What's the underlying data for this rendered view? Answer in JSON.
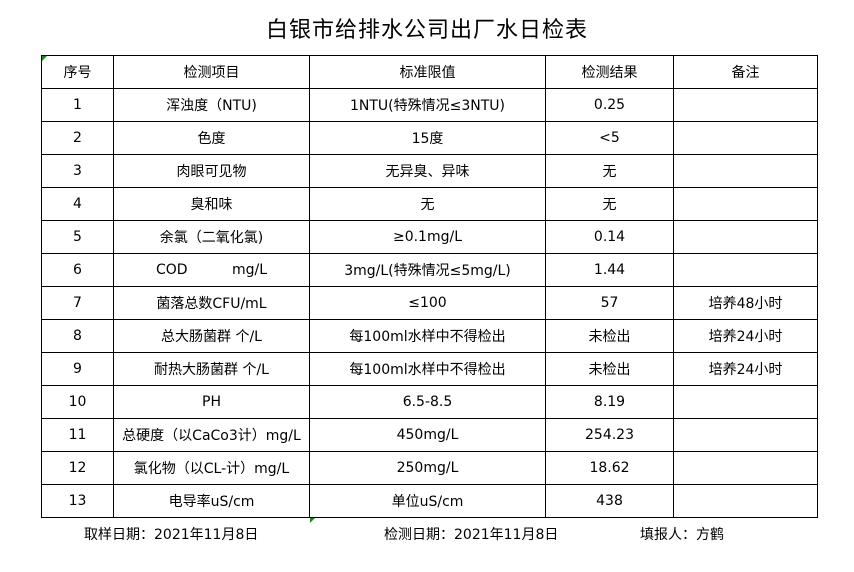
{
  "title": "白银市给排水公司出厂水日检表",
  "headers": [
    "序号",
    "检测项目",
    "标准限值",
    "检测结果",
    "备注"
  ],
  "rows": [
    [
      "1",
      "浑浊度（NTU)",
      "1NTU(特殊情况≤3NTU)",
      "0.25",
      ""
    ],
    [
      "2",
      "色度",
      "15度",
      "<5",
      ""
    ],
    [
      "3",
      "肉眼可见物",
      "无异臭、异味",
      "无",
      ""
    ],
    [
      "4",
      "臭和味",
      "无",
      "无",
      ""
    ],
    [
      "5",
      "余氯（二氧化氯)",
      "≥0.1mg/L",
      "0.14",
      ""
    ],
    [
      "6",
      "COD          mg/L",
      "3mg/L(特殊情况≤5mg/L)",
      "1.44",
      ""
    ],
    [
      "7",
      "菌落总数CFU/mL",
      "≤100",
      "57",
      "培养48小时"
    ],
    [
      "8",
      "总大肠菌群 个/L",
      "每100ml水样中不得检出",
      "未检出",
      "培养24小时"
    ],
    [
      "9",
      "耐热大肠菌群 个/L",
      "每100ml水样中不得检出",
      "未检出",
      "培养24小时"
    ],
    [
      "10",
      "PH",
      "6.5-8.5",
      "8.19",
      ""
    ],
    [
      "11",
      "总硬度（以CaCo3计）mg/L",
      "450mg/L",
      "254.23",
      ""
    ],
    [
      "12",
      "氯化物（以CL-计）mg/L",
      "250mg/L",
      "18.62",
      ""
    ],
    [
      "13",
      "电导率uS/cm",
      "单位uS/cm",
      "438",
      ""
    ]
  ],
  "footer": {
    "sampling_date": "取样日期：2021年11月8日",
    "testing_date": "检测日期：2021年11月8日",
    "reporter": "填报人：方鹤"
  },
  "colors": {
    "cell_marker": "#1a8a1a"
  }
}
